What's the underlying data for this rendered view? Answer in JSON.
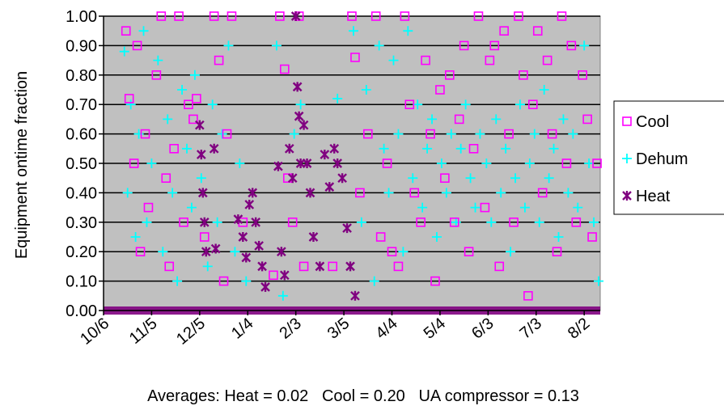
{
  "chart_data": {
    "type": "scatter",
    "ylabel": "Equipment ontime fraction",
    "xlabel": "",
    "note": "Averages: Heat = 0.02   Cool = 0.20   UA compressor = 0.13",
    "ylim": [
      0,
      1
    ],
    "yticks": [
      0,
      0.1,
      0.2,
      0.3,
      0.4,
      0.5,
      0.6,
      0.7,
      0.8,
      0.9,
      1.0
    ],
    "ytick_labels": [
      "0.00",
      "0.10",
      "0.20",
      "0.30",
      "0.40",
      "0.50",
      "0.60",
      "0.70",
      "0.80",
      "0.90",
      "1.00"
    ],
    "xlim": [
      "10/6",
      "8/12"
    ],
    "xtick_labels": [
      "10/6",
      "11/5",
      "12/5",
      "1/4",
      "2/3",
      "3/5",
      "4/4",
      "5/4",
      "6/3",
      "7/3",
      "8/2"
    ],
    "grid": true,
    "background": "#c0c0c0",
    "legend_position": "right",
    "series": [
      {
        "name": "Cool",
        "marker": "open-square",
        "color": "#ff00ff",
        "points": [
          [
            "10/20",
            0.95
          ],
          [
            "10/22",
            0.72
          ],
          [
            "10/25",
            0.5
          ],
          [
            "10/27",
            0.9
          ],
          [
            "10/29",
            0.2
          ],
          [
            "11/1",
            0.6
          ],
          [
            "11/3",
            0.35
          ],
          [
            "11/8",
            0.8
          ],
          [
            "11/11",
            1.0
          ],
          [
            "11/14",
            0.45
          ],
          [
            "11/16",
            0.15
          ],
          [
            "11/19",
            0.55
          ],
          [
            "11/22",
            1.0
          ],
          [
            "11/25",
            0.3
          ],
          [
            "11/28",
            0.7
          ],
          [
            "12/1",
            0.65
          ],
          [
            "12/3",
            0.72
          ],
          [
            "12/8",
            0.25
          ],
          [
            "12/14",
            1.0
          ],
          [
            "12/17",
            0.85
          ],
          [
            "12/20",
            0.1
          ],
          [
            "12/22",
            0.6
          ],
          [
            "12/25",
            1.0
          ],
          [
            "1/1",
            0.3
          ],
          [
            "1/20",
            0.12
          ],
          [
            "1/24",
            1.0
          ],
          [
            "1/27",
            0.82
          ],
          [
            "1/29",
            0.45
          ],
          [
            "2/1",
            0.3
          ],
          [
            "2/5",
            1.0
          ],
          [
            "2/8",
            0.15
          ],
          [
            "2/26",
            0.15
          ],
          [
            "3/10",
            1.0
          ],
          [
            "3/12",
            0.86
          ],
          [
            "3/15",
            0.4
          ],
          [
            "3/20",
            0.6
          ],
          [
            "3/25",
            1.0
          ],
          [
            "3/28",
            0.25
          ],
          [
            "4/1",
            0.5
          ],
          [
            "4/4",
            0.2
          ],
          [
            "4/8",
            0.15
          ],
          [
            "4/12",
            1.0
          ],
          [
            "4/15",
            0.7
          ],
          [
            "4/18",
            0.4
          ],
          [
            "4/22",
            0.3
          ],
          [
            "4/25",
            0.85
          ],
          [
            "4/28",
            0.6
          ],
          [
            "5/1",
            0.1
          ],
          [
            "5/4",
            0.75
          ],
          [
            "5/7",
            0.45
          ],
          [
            "5/10",
            0.8
          ],
          [
            "5/13",
            0.3
          ],
          [
            "5/16",
            0.65
          ],
          [
            "5/19",
            0.9
          ],
          [
            "5/22",
            0.2
          ],
          [
            "5/25",
            0.55
          ],
          [
            "5/28",
            1.0
          ],
          [
            "6/1",
            0.35
          ],
          [
            "6/4",
            0.85
          ],
          [
            "6/7",
            0.9
          ],
          [
            "6/10",
            0.15
          ],
          [
            "6/13",
            0.95
          ],
          [
            "6/16",
            0.6
          ],
          [
            "6/19",
            0.3
          ],
          [
            "6/22",
            1.0
          ],
          [
            "6/25",
            0.8
          ],
          [
            "6/28",
            0.05
          ],
          [
            "7/1",
            0.7
          ],
          [
            "7/4",
            0.95
          ],
          [
            "7/7",
            0.4
          ],
          [
            "7/10",
            0.85
          ],
          [
            "7/13",
            0.6
          ],
          [
            "7/16",
            0.2
          ],
          [
            "7/19",
            1.0
          ],
          [
            "7/22",
            0.5
          ],
          [
            "7/25",
            0.9
          ],
          [
            "7/28",
            0.3
          ],
          [
            "8/1",
            0.8
          ],
          [
            "8/4",
            0.65
          ],
          [
            "8/7",
            0.25
          ],
          [
            "8/10",
            0.5
          ]
        ]
      },
      {
        "name": "Dehum",
        "marker": "plus",
        "color": "#00ffff",
        "points": [
          [
            "10/19",
            0.88
          ],
          [
            "10/21",
            0.4
          ],
          [
            "10/23",
            0.7
          ],
          [
            "10/26",
            0.25
          ],
          [
            "10/28",
            0.6
          ],
          [
            "10/31",
            0.95
          ],
          [
            "11/2",
            0.3
          ],
          [
            "11/5",
            0.5
          ],
          [
            "11/9",
            0.85
          ],
          [
            "11/12",
            0.2
          ],
          [
            "11/15",
            0.65
          ],
          [
            "11/18",
            0.4
          ],
          [
            "11/21",
            0.1
          ],
          [
            "11/24",
            0.75
          ],
          [
            "11/27",
            0.55
          ],
          [
            "11/30",
            0.35
          ],
          [
            "12/2",
            0.8
          ],
          [
            "12/6",
            0.45
          ],
          [
            "12/10",
            0.15
          ],
          [
            "12/13",
            0.7
          ],
          [
            "12/16",
            0.3
          ],
          [
            "12/19",
            0.6
          ],
          [
            "12/23",
            0.9
          ],
          [
            "12/27",
            0.2
          ],
          [
            "12/30",
            0.5
          ],
          [
            "1/3",
            0.1
          ],
          [
            "1/22",
            0.9
          ],
          [
            "1/26",
            0.05
          ],
          [
            "2/2",
            0.6
          ],
          [
            "2/6",
            0.7
          ],
          [
            "3/1",
            0.72
          ],
          [
            "3/11",
            0.95
          ],
          [
            "3/16",
            0.3
          ],
          [
            "3/19",
            0.75
          ],
          [
            "3/24",
            0.1
          ],
          [
            "3/27",
            0.9
          ],
          [
            "3/30",
            0.55
          ],
          [
            "4/2",
            0.4
          ],
          [
            "4/5",
            0.85
          ],
          [
            "4/8",
            0.6
          ],
          [
            "4/11",
            0.2
          ],
          [
            "4/14",
            0.95
          ],
          [
            "4/17",
            0.45
          ],
          [
            "4/20",
            0.7
          ],
          [
            "4/23",
            0.35
          ],
          [
            "4/26",
            0.55
          ],
          [
            "4/29",
            0.65
          ],
          [
            "5/2",
            0.25
          ],
          [
            "5/5",
            0.5
          ],
          [
            "5/8",
            0.4
          ],
          [
            "5/11",
            0.6
          ],
          [
            "5/14",
            0.3
          ],
          [
            "5/17",
            0.55
          ],
          [
            "5/20",
            0.7
          ],
          [
            "5/23",
            0.45
          ],
          [
            "5/26",
            0.35
          ],
          [
            "5/29",
            0.6
          ],
          [
            "6/2",
            0.5
          ],
          [
            "6/5",
            0.3
          ],
          [
            "6/8",
            0.65
          ],
          [
            "6/11",
            0.4
          ],
          [
            "6/14",
            0.55
          ],
          [
            "6/17",
            0.2
          ],
          [
            "6/20",
            0.45
          ],
          [
            "6/23",
            0.7
          ],
          [
            "6/26",
            0.35
          ],
          [
            "6/29",
            0.5
          ],
          [
            "7/2",
            0.6
          ],
          [
            "7/5",
            0.3
          ],
          [
            "7/8",
            0.75
          ],
          [
            "7/11",
            0.45
          ],
          [
            "7/14",
            0.55
          ],
          [
            "7/17",
            0.25
          ],
          [
            "7/20",
            0.65
          ],
          [
            "7/23",
            0.4
          ],
          [
            "7/26",
            0.6
          ],
          [
            "7/29",
            0.35
          ],
          [
            "8/2",
            0.9
          ],
          [
            "8/5",
            0.5
          ],
          [
            "8/8",
            0.3
          ],
          [
            "8/11",
            0.1
          ]
        ]
      },
      {
        "name": "Heat",
        "marker": "star",
        "color": "#800080",
        "points": [
          [
            "12/5",
            0.63
          ],
          [
            "12/6",
            0.53
          ],
          [
            "12/7",
            0.4
          ],
          [
            "12/8",
            0.3
          ],
          [
            "12/9",
            0.2
          ],
          [
            "12/14",
            0.55
          ],
          [
            "12/15",
            0.21
          ],
          [
            "12/29",
            0.31
          ],
          [
            "1/1",
            0.25
          ],
          [
            "1/3",
            0.18
          ],
          [
            "1/5",
            0.36
          ],
          [
            "1/7",
            0.4
          ],
          [
            "1/9",
            0.3
          ],
          [
            "1/11",
            0.22
          ],
          [
            "1/13",
            0.15
          ],
          [
            "1/15",
            0.08
          ],
          [
            "1/23",
            0.49
          ],
          [
            "1/25",
            0.2
          ],
          [
            "1/27",
            0.12
          ],
          [
            "1/30",
            0.55
          ],
          [
            "2/1",
            0.45
          ],
          [
            "2/3",
            1.0
          ],
          [
            "2/4",
            0.76
          ],
          [
            "2/5",
            0.66
          ],
          [
            "2/6",
            0.5
          ],
          [
            "2/8",
            0.63
          ],
          [
            "2/10",
            0.5
          ],
          [
            "2/12",
            0.4
          ],
          [
            "2/14",
            0.25
          ],
          [
            "2/18",
            0.15
          ],
          [
            "2/21",
            0.53
          ],
          [
            "2/24",
            0.42
          ],
          [
            "2/27",
            0.55
          ],
          [
            "3/1",
            0.5
          ],
          [
            "3/4",
            0.45
          ],
          [
            "3/7",
            0.28
          ],
          [
            "3/9",
            0.15
          ],
          [
            "3/12",
            0.05
          ]
        ]
      }
    ]
  }
}
